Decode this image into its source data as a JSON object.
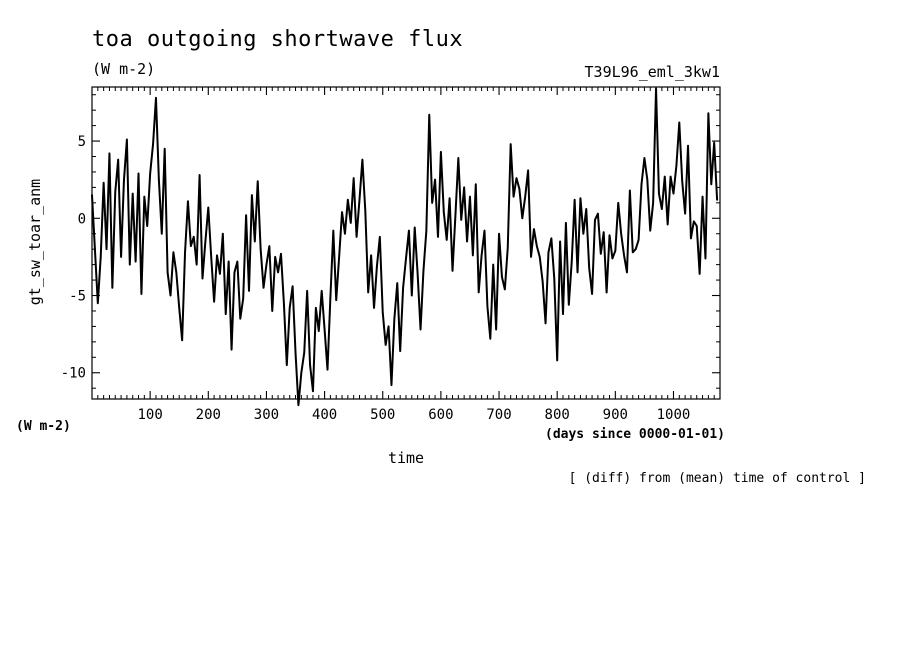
{
  "chart_data": {
    "type": "line",
    "title": "toa outgoing shortwave flux",
    "unit_label": "(W m-2)",
    "experiment": "T39L96_eml_3kw1",
    "xlabel": "time",
    "xunit": "(days since 0000-01-01)",
    "ylabel": "gt_sw_toar_anm",
    "yunit": "(W m-2)",
    "note": "[ (diff) from (mean) time of control ]",
    "xlim": [
      0,
      1080
    ],
    "ylim": [
      -11.7,
      8.5
    ],
    "x_ticks": [
      100,
      200,
      300,
      400,
      500,
      600,
      700,
      800,
      900,
      1000
    ],
    "y_ticks": [
      -10,
      -5,
      0,
      5
    ],
    "grid": false,
    "series": [
      {
        "x": [
          0,
          5,
          10,
          15,
          20,
          25,
          30,
          35,
          40,
          45,
          50,
          55,
          60,
          65,
          70,
          75,
          80,
          85,
          90,
          95,
          100,
          105,
          110,
          115,
          120,
          125,
          130,
          135,
          140,
          145,
          150,
          155,
          160,
          165,
          170,
          175,
          180,
          185,
          190,
          195,
          200,
          205,
          210,
          215,
          220,
          225,
          230,
          235,
          240,
          245,
          250,
          255,
          260,
          265,
          270,
          275,
          280,
          285,
          290,
          295,
          300,
          305,
          310,
          315,
          320,
          325,
          330,
          335,
          340,
          345,
          350,
          355,
          360,
          365,
          370,
          375,
          380,
          385,
          390,
          395,
          400,
          405,
          410,
          415,
          420,
          425,
          430,
          435,
          440,
          445,
          450,
          455,
          460,
          465,
          470,
          475,
          480,
          485,
          490,
          495,
          500,
          505,
          510,
          515,
          520,
          525,
          530,
          535,
          540,
          545,
          550,
          555,
          560,
          565,
          570,
          575,
          580,
          585,
          590,
          595,
          600,
          605,
          610,
          615,
          620,
          625,
          630,
          635,
          640,
          645,
          650,
          655,
          660,
          665,
          670,
          675,
          680,
          685,
          690,
          695,
          700,
          705,
          710,
          715,
          720,
          725,
          730,
          735,
          740,
          745,
          750,
          755,
          760,
          765,
          770,
          775,
          780,
          785,
          790,
          795,
          800,
          805,
          810,
          815,
          820,
          825,
          830,
          835,
          840,
          845,
          850,
          855,
          860,
          865,
          870,
          875,
          880,
          885,
          890,
          895,
          900,
          905,
          910,
          915,
          920,
          925,
          930,
          935,
          940,
          945,
          950,
          955,
          960,
          965,
          970,
          975,
          980,
          985,
          990,
          995,
          1000,
          1005,
          1010,
          1015,
          1020,
          1025,
          1030,
          1035,
          1040,
          1045,
          1050,
          1055,
          1060,
          1065,
          1070,
          1075
        ],
        "y": [
          1.5,
          -2.0,
          -5.5,
          -2.5,
          2.3,
          -2.0,
          4.2,
          -4.5,
          1.7,
          3.8,
          -2.5,
          2.5,
          5.1,
          -3.0,
          1.6,
          -2.8,
          2.9,
          -4.9,
          1.4,
          -0.5,
          2.9,
          4.8,
          7.8,
          2.5,
          -1.0,
          4.5,
          -3.5,
          -5.0,
          -2.2,
          -3.5,
          -5.8,
          -7.9,
          -2.2,
          1.1,
          -1.8,
          -1.2,
          -3.0,
          2.8,
          -3.9,
          -1.5,
          0.7,
          -2.5,
          -5.4,
          -2.4,
          -3.6,
          -1.0,
          -6.2,
          -2.8,
          -8.5,
          -3.5,
          -2.8,
          -6.5,
          -5.2,
          0.2,
          -4.7,
          1.5,
          -1.5,
          2.4,
          -2.0,
          -4.5,
          -3.0,
          -1.8,
          -6.0,
          -2.5,
          -3.5,
          -2.3,
          -5.5,
          -9.5,
          -5.8,
          -4.4,
          -8.7,
          -12.1,
          -10.0,
          -8.7,
          -4.7,
          -9.5,
          -11.2,
          -5.8,
          -7.3,
          -4.7,
          -7.2,
          -9.8,
          -5.1,
          -0.8,
          -5.3,
          -2.5,
          0.4,
          -1.0,
          1.2,
          -0.3,
          2.6,
          -1.2,
          1.2,
          3.8,
          0.5,
          -4.8,
          -2.4,
          -5.8,
          -3.1,
          -1.2,
          -6.1,
          -8.2,
          -7.0,
          -10.8,
          -6.5,
          -4.2,
          -8.6,
          -4.5,
          -2.6,
          -0.8,
          -5.0,
          -0.6,
          -3.6,
          -7.2,
          -3.4,
          -0.8,
          6.7,
          1.0,
          2.5,
          -1.2,
          4.3,
          0.4,
          -1.4,
          1.3,
          -3.4,
          0.2,
          3.9,
          -0.1,
          2.0,
          -1.5,
          1.4,
          -2.4,
          2.2,
          -4.8,
          -2.4,
          -0.8,
          -5.7,
          -7.8,
          -3.0,
          -7.2,
          -1.0,
          -3.8,
          -4.6,
          -1.9,
          4.8,
          1.4,
          2.6,
          1.9,
          0.0,
          1.4,
          3.1,
          -2.5,
          -0.7,
          -1.8,
          -2.5,
          -4.1,
          -6.8,
          -2.2,
          -1.3,
          -3.9,
          -9.2,
          -1.5,
          -6.2,
          -0.3,
          -5.6,
          -2.8,
          1.2,
          -3.5,
          1.3,
          -1.0,
          0.6,
          -3.2,
          -4.9,
          -0.1,
          0.3,
          -2.3,
          -0.9,
          -4.8,
          -1.1,
          -2.6,
          -2.1,
          1.0,
          -1.0,
          -2.4,
          -3.5,
          1.8,
          -2.2,
          -2.0,
          -1.4,
          2.2,
          3.9,
          2.5,
          -0.8,
          1.0,
          8.4,
          1.6,
          0.6,
          2.7,
          -0.4,
          2.7,
          1.6,
          3.4,
          6.2,
          2.4,
          0.3,
          4.7,
          -1.3,
          -0.2,
          -0.5,
          -3.6,
          1.4,
          -2.6,
          6.8,
          2.2,
          4.9,
          1.2
        ]
      }
    ]
  }
}
